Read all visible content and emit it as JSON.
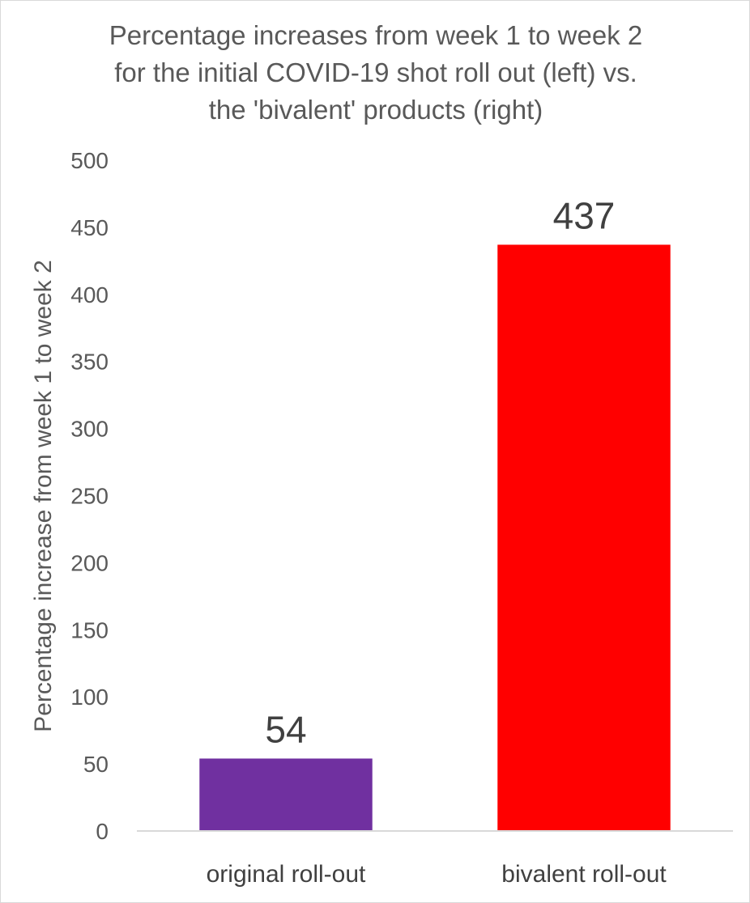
{
  "chart_data": {
    "type": "bar",
    "title_lines": [
      "Percentage increases from week 1 to week 2",
      "for the initial COVID-19 shot roll out (left) vs.",
      "the 'bivalent' products (right)"
    ],
    "ylabel": "Percentage increase from week 1 to week 2",
    "xlabel": "",
    "categories": [
      "original roll-out",
      "bivalent roll-out"
    ],
    "values": [
      54,
      437
    ],
    "data_labels": [
      "54",
      "437"
    ],
    "bar_colors": [
      "#7030A0",
      "#FF0000"
    ],
    "ylim": [
      0,
      500
    ],
    "yticks": [
      "0",
      "50",
      "100",
      "150",
      "200",
      "250",
      "300",
      "350",
      "400",
      "450",
      "500"
    ],
    "grid": false,
    "legend": "none"
  }
}
